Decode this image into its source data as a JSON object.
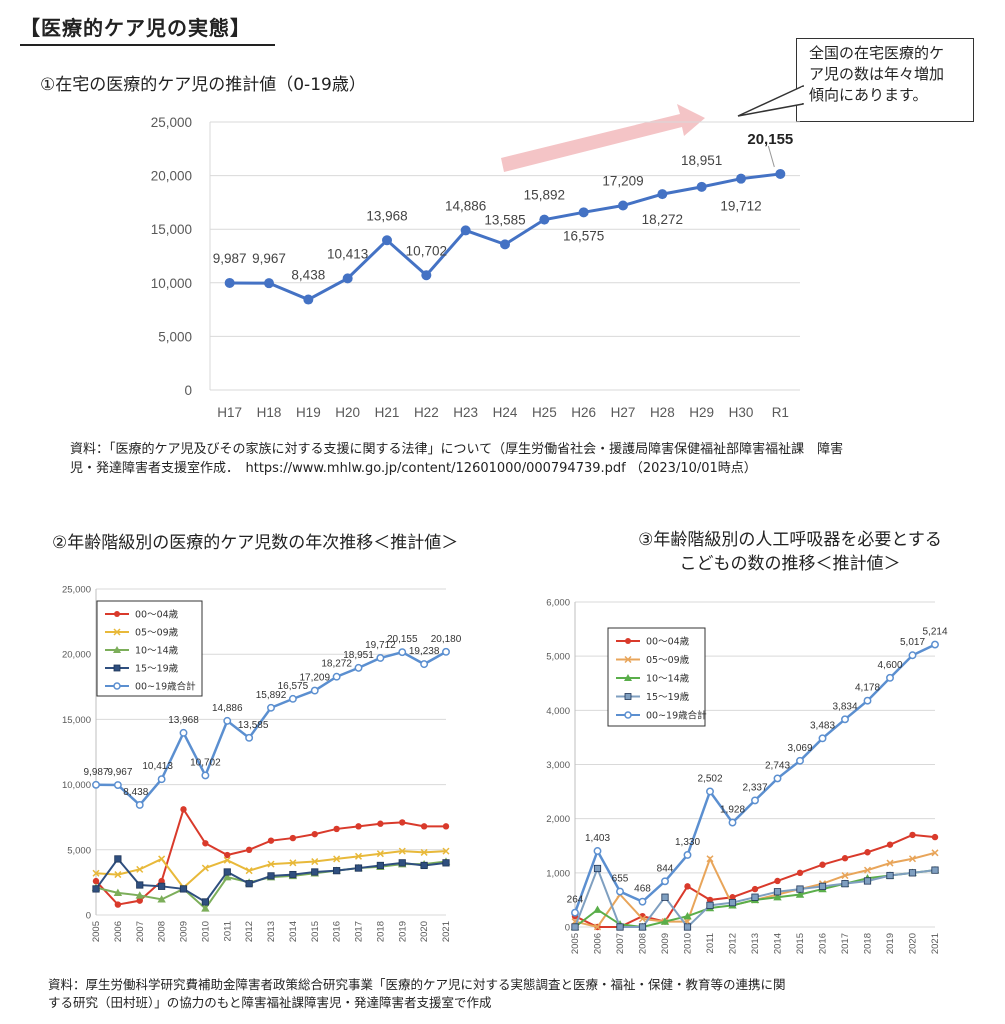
{
  "page_title": "【医療的ケア児の実態】",
  "callout_lines": [
    "全国の在宅医療的ケ",
    "ア児の数は年々増加",
    "傾向にあります。"
  ],
  "source1_lines": [
    "資料：「医療的ケア児及びその家族に対する支援に関する法律」について（厚生労働省社会・援護局障害保健福祉部障害福祉課　障害",
    "児・発達障害者支援室作成．　https://www.mhlw.go.jp/content/12601000/000794739.pdf （2023/10/01時点）"
  ],
  "source2_lines": [
    "資料：厚生労働科学研究費補助金障害者政策総合研究事業「医療的ケア児に対する実態調査と医療・福祉・保健・教育等の連携に関",
    "する研究（田村班）」の協力のもと障害福祉課障害児・発達障害者支援室で作成"
  ],
  "chart_data": [
    {
      "type": "line",
      "title": "①在宅の医療的ケア児の推計値（0-19歳）",
      "categories": [
        "H17",
        "H18",
        "H19",
        "H20",
        "H21",
        "H22",
        "H23",
        "H24",
        "H25",
        "H26",
        "H27",
        "H28",
        "H29",
        "H30",
        "R1"
      ],
      "series": [
        {
          "values": [
            9987,
            9967,
            8438,
            10413,
            13968,
            10702,
            14886,
            13585,
            15892,
            16575,
            17209,
            18272,
            18951,
            19712,
            20155
          ]
        }
      ],
      "data_labels": [
        "9,987",
        "9,967",
        "8,438",
        "10,413",
        "13,968",
        "10,702",
        "14,886",
        "13,585",
        "15,892",
        "16,575",
        "17,209",
        "18,272",
        "18,951",
        "19,712",
        "20,155"
      ],
      "yticks": [
        "0",
        "5,000",
        "10,000",
        "15,000",
        "20,000",
        "25,000"
      ],
      "ylim": [
        0,
        25000
      ],
      "grid": true,
      "color": "#4472c4"
    },
    {
      "type": "line",
      "title": "②年齢階級別の医療的ケア児数の年次推移＜推計値＞",
      "categories": [
        "2005",
        "2006",
        "2007",
        "2008",
        "2009",
        "2010",
        "2011",
        "2012",
        "2013",
        "2014",
        "2015",
        "2016",
        "2017",
        "2018",
        "2019",
        "2020",
        "2021"
      ],
      "yticks": [
        "0",
        "5,000",
        "10,000",
        "15,000",
        "20,000",
        "25,000"
      ],
      "ylim": [
        0,
        25000
      ],
      "legend_position": "top-left",
      "grid": true,
      "series": [
        {
          "name": "00～04歳",
          "color": "#d93a2b",
          "marker": "circle-filled",
          "values": [
            2600,
            800,
            1100,
            2600,
            8100,
            5500,
            4600,
            5000,
            5700,
            5900,
            6200,
            6600,
            6800,
            7000,
            7100,
            6800,
            6800
          ]
        },
        {
          "name": "05～09歳",
          "color": "#e8b93a",
          "marker": "x",
          "values": [
            3200,
            3100,
            3500,
            4300,
            2100,
            3600,
            4200,
            3400,
            3900,
            4000,
            4100,
            4300,
            4500,
            4700,
            4900,
            4800,
            4900
          ]
        },
        {
          "name": "10～14歳",
          "color": "#7cae5a",
          "marker": "triangle",
          "values": [
            2100,
            1700,
            1500,
            1200,
            2000,
            500,
            2900,
            2500,
            2900,
            3000,
            3200,
            3400,
            3600,
            3700,
            3900,
            3900,
            4100
          ]
        },
        {
          "name": "15～19歳",
          "color": "#2f4f7f",
          "marker": "square",
          "values": [
            2000,
            4300,
            2300,
            2200,
            2000,
            1000,
            3300,
            2400,
            3000,
            3100,
            3300,
            3400,
            3600,
            3800,
            4000,
            3800,
            4000
          ]
        },
        {
          "name": "00~19歳合計",
          "color": "#5b8fd0",
          "marker": "circle-open",
          "values": [
            9987,
            9967,
            8438,
            10413,
            13968,
            10702,
            14886,
            13585,
            15892,
            16575,
            17209,
            18272,
            18951,
            19712,
            20155,
            19238,
            20180
          ]
        }
      ],
      "total_labels": [
        "9,987",
        "9,967",
        "8,438",
        "10,413",
        "13,968",
        "10,702",
        "14,886",
        "13,585",
        "15,892",
        "16,575",
        "17,209",
        "18,272",
        "18,951",
        "19,712",
        "20,155",
        "19,238",
        "20,180"
      ]
    },
    {
      "type": "line",
      "title_lines": [
        "③年齢階級別の人工呼吸器を必要とする",
        "こどもの数の推移＜推計値＞"
      ],
      "categories": [
        "2005",
        "2006",
        "2007",
        "2008",
        "2009",
        "2010",
        "2011",
        "2012",
        "2013",
        "2014",
        "2015",
        "2016",
        "2017",
        "2018",
        "2019",
        "2020",
        "2021"
      ],
      "yticks": [
        "0",
        "1,000",
        "2,000",
        "3,000",
        "4,000",
        "5,000",
        "6,000"
      ],
      "ylim": [
        0,
        6000
      ],
      "legend_position": "top-left",
      "grid": true,
      "series": [
        {
          "name": "00～04歳",
          "color": "#d93a2b",
          "marker": "circle-filled",
          "values": [
            200,
            0,
            0,
            200,
            100,
            750,
            500,
            550,
            700,
            850,
            1000,
            1150,
            1270,
            1380,
            1520,
            1700,
            1660
          ]
        },
        {
          "name": "05～09歳",
          "color": "#e8a55a",
          "marker": "x",
          "values": [
            100,
            0,
            600,
            150,
            100,
            100,
            1260,
            400,
            500,
            600,
            700,
            800,
            950,
            1050,
            1180,
            1260,
            1370
          ]
        },
        {
          "name": "10～14歳",
          "color": "#5aae4a",
          "marker": "triangle",
          "values": [
            0,
            320,
            50,
            0,
            100,
            200,
            350,
            400,
            500,
            550,
            600,
            700,
            800,
            900,
            950,
            1000,
            1050
          ]
        },
        {
          "name": "15～19歳",
          "color": "#7f9fc0",
          "marker": "square",
          "values": [
            0,
            1080,
            0,
            0,
            550,
            0,
            400,
            450,
            550,
            650,
            700,
            750,
            800,
            850,
            950,
            1000,
            1050
          ]
        },
        {
          "name": "00~19歳合計",
          "color": "#5b8fd0",
          "marker": "circle-open",
          "values": [
            264,
            1403,
            655,
            468,
            844,
            1330,
            2502,
            1928,
            2337,
            2743,
            3069,
            3483,
            3834,
            4178,
            4600,
            5017,
            5214
          ]
        }
      ],
      "total_labels": [
        "264",
        "1,403",
        "655",
        "468",
        "844",
        "1,330",
        "2,502",
        "1,928",
        "2,337",
        "2,743",
        "3,069",
        "3,483",
        "3,834",
        "4,178",
        "4,600",
        "5,017",
        "5,214"
      ]
    }
  ]
}
